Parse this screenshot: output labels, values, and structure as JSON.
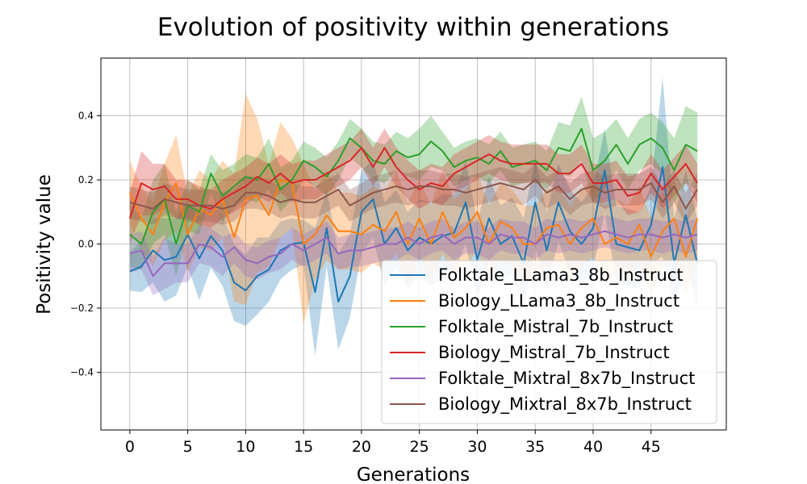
{
  "chart_data": {
    "type": "line",
    "title": "Evolution of positivity within generations",
    "xlabel": "Generations",
    "ylabel": "Positivity value",
    "xlim": [
      -2.5,
      51.5
    ],
    "ylim": [
      -0.58,
      0.58
    ],
    "xticks": [
      0,
      5,
      10,
      15,
      20,
      25,
      30,
      35,
      40,
      45
    ],
    "xtick_labels": [
      "0",
      "5",
      "10",
      "15",
      "20",
      "25",
      "30",
      "35",
      "40",
      "45"
    ],
    "yticks": [
      -0.4,
      -0.2,
      0.0,
      0.2,
      0.4
    ],
    "ytick_labels": [
      "−0.4",
      "−0.2",
      "0.0",
      "0.2",
      "0.4"
    ],
    "grid": true,
    "legend_position": "lower-right",
    "x": [
      0,
      1,
      2,
      3,
      4,
      5,
      6,
      7,
      8,
      9,
      10,
      11,
      12,
      13,
      14,
      15,
      16,
      17,
      18,
      19,
      20,
      21,
      22,
      23,
      24,
      25,
      26,
      27,
      28,
      29,
      30,
      31,
      32,
      33,
      34,
      35,
      36,
      37,
      38,
      39,
      40,
      41,
      42,
      43,
      44,
      45,
      46,
      47,
      48,
      49
    ],
    "series": [
      {
        "name": "Folktale_LLama3_8b_Instruct",
        "color": "#1f77b4",
        "values": [
          -0.085,
          -0.07,
          -0.02,
          -0.05,
          -0.04,
          0.03,
          -0.045,
          0.025,
          -0.02,
          -0.12,
          -0.145,
          -0.1,
          -0.08,
          -0.02,
          0.0,
          0.005,
          -0.15,
          0.05,
          -0.18,
          -0.1,
          0.1,
          0.14,
          0.0,
          0.05,
          -0.02,
          0.02,
          0.0,
          0.025,
          0.035,
          0.13,
          -0.05,
          0.08,
          0.0,
          0.025,
          -0.06,
          0.13,
          -0.02,
          0.13,
          0.04,
          0.0,
          0.05,
          0.23,
          0.0,
          -0.01,
          -0.02,
          0.06,
          0.24,
          -0.06,
          0.09,
          -0.06
        ],
        "band": [
          0.06,
          0.08,
          0.1,
          0.13,
          0.12,
          0.1,
          0.13,
          0.1,
          0.11,
          0.12,
          0.11,
          0.12,
          0.1,
          0.09,
          0.08,
          0.07,
          0.2,
          0.12,
          0.15,
          0.13,
          0.13,
          0.12,
          0.13,
          0.12,
          0.12,
          0.12,
          0.13,
          0.13,
          0.12,
          0.13,
          0.12,
          0.13,
          0.12,
          0.12,
          0.14,
          0.14,
          0.12,
          0.12,
          0.13,
          0.13,
          0.13,
          0.13,
          0.12,
          0.12,
          0.12,
          0.12,
          0.28,
          0.14,
          0.14,
          0.14
        ]
      },
      {
        "name": "Biology_LLama3_8b_Instruct",
        "color": "#ff7f0e",
        "values": [
          0.16,
          0.08,
          0.03,
          0.13,
          0.19,
          0.03,
          0.11,
          0.09,
          0.14,
          0.02,
          0.14,
          0.15,
          0.09,
          0.2,
          0.19,
          0.0,
          0.03,
          0.09,
          0.04,
          0.04,
          0.03,
          0.06,
          0.04,
          0.1,
          0.0,
          0.08,
          0.0,
          0.1,
          0.02,
          0.05,
          0.1,
          0.0,
          0.07,
          0.05,
          0.0,
          0.0,
          0.05,
          0.06,
          0.0,
          0.05,
          0.08,
          0.0,
          0.02,
          0.0,
          0.06,
          -0.04,
          0.04,
          0.08,
          -0.04,
          0.08
        ],
        "band": [
          0.1,
          0.1,
          0.1,
          0.12,
          0.15,
          0.12,
          0.12,
          0.11,
          0.12,
          0.2,
          0.33,
          0.24,
          0.16,
          0.18,
          0.14,
          0.25,
          0.14,
          0.14,
          0.12,
          0.12,
          0.12,
          0.12,
          0.12,
          0.13,
          0.13,
          0.12,
          0.12,
          0.13,
          0.12,
          0.12,
          0.12,
          0.12,
          0.12,
          0.12,
          0.12,
          0.12,
          0.12,
          0.12,
          0.12,
          0.12,
          0.12,
          0.12,
          0.12,
          0.12,
          0.12,
          0.12,
          0.12,
          0.12,
          0.12,
          0.12
        ]
      },
      {
        "name": "Folktale_Mistral_7b_Instruct",
        "color": "#2ca02c",
        "values": [
          0.03,
          0.0,
          0.1,
          0.14,
          0.0,
          0.12,
          0.1,
          0.22,
          0.15,
          0.18,
          0.21,
          0.2,
          0.25,
          0.17,
          0.2,
          0.26,
          0.24,
          0.21,
          0.26,
          0.33,
          0.3,
          0.26,
          0.25,
          0.29,
          0.27,
          0.28,
          0.32,
          0.29,
          0.24,
          0.26,
          0.27,
          0.25,
          0.29,
          0.24,
          0.25,
          0.26,
          0.23,
          0.3,
          0.29,
          0.36,
          0.23,
          0.26,
          0.31,
          0.25,
          0.31,
          0.33,
          0.3,
          0.23,
          0.31,
          0.29
        ],
        "band": [
          0.1,
          0.08,
          0.1,
          0.11,
          0.1,
          0.08,
          0.07,
          0.06,
          0.08,
          0.07,
          0.07,
          0.07,
          0.08,
          0.07,
          0.06,
          0.06,
          0.06,
          0.06,
          0.06,
          0.06,
          0.06,
          0.06,
          0.06,
          0.06,
          0.06,
          0.08,
          0.08,
          0.06,
          0.06,
          0.06,
          0.06,
          0.06,
          0.06,
          0.06,
          0.06,
          0.06,
          0.06,
          0.08,
          0.08,
          0.1,
          0.1,
          0.09,
          0.08,
          0.08,
          0.08,
          0.08,
          0.08,
          0.1,
          0.12,
          0.12
        ]
      },
      {
        "name": "Biology_Mistral_7b_Instruct",
        "color": "#d62728",
        "values": [
          0.08,
          0.19,
          0.17,
          0.18,
          0.14,
          0.14,
          0.12,
          0.11,
          0.14,
          0.16,
          0.18,
          0.21,
          0.19,
          0.22,
          0.19,
          0.2,
          0.2,
          0.22,
          0.24,
          0.26,
          0.3,
          0.24,
          0.3,
          0.24,
          0.2,
          0.17,
          0.19,
          0.18,
          0.22,
          0.24,
          0.26,
          0.28,
          0.26,
          0.25,
          0.25,
          0.25,
          0.25,
          0.22,
          0.22,
          0.25,
          0.19,
          0.19,
          0.2,
          0.15,
          0.16,
          0.22,
          0.17,
          0.21,
          0.25,
          0.19
        ],
        "band": [
          0.08,
          0.1,
          0.08,
          0.07,
          0.06,
          0.06,
          0.06,
          0.06,
          0.06,
          0.06,
          0.06,
          0.06,
          0.06,
          0.06,
          0.06,
          0.06,
          0.06,
          0.06,
          0.06,
          0.06,
          0.06,
          0.06,
          0.06,
          0.06,
          0.06,
          0.06,
          0.06,
          0.06,
          0.06,
          0.06,
          0.06,
          0.06,
          0.06,
          0.06,
          0.06,
          0.06,
          0.06,
          0.06,
          0.06,
          0.06,
          0.06,
          0.06,
          0.06,
          0.06,
          0.06,
          0.06,
          0.06,
          0.06,
          0.06,
          0.06
        ]
      },
      {
        "name": "Folktale_Mixtral_8x7b_Instruct",
        "color": "#9467bd",
        "values": [
          -0.03,
          -0.02,
          -0.1,
          -0.06,
          -0.06,
          -0.06,
          0.0,
          -0.01,
          -0.04,
          -0.01,
          -0.05,
          -0.06,
          -0.04,
          -0.03,
          0.0,
          -0.02,
          0.0,
          0.02,
          -0.03,
          -0.02,
          -0.02,
          -0.01,
          0.0,
          0.0,
          0.02,
          0.0,
          0.02,
          0.03,
          0.0,
          0.02,
          0.02,
          0.0,
          0.03,
          0.02,
          0.02,
          0.0,
          0.03,
          0.02,
          0.03,
          0.02,
          0.03,
          0.04,
          0.03,
          0.02,
          0.03,
          0.03,
          0.02,
          0.03,
          0.02,
          0.03
        ],
        "band": [
          0.06,
          0.06,
          0.06,
          0.08,
          0.06,
          0.06,
          0.06,
          0.06,
          0.06,
          0.05,
          0.05,
          0.05,
          0.05,
          0.05,
          0.05,
          0.05,
          0.05,
          0.05,
          0.05,
          0.05,
          0.05,
          0.05,
          0.05,
          0.05,
          0.05,
          0.05,
          0.05,
          0.05,
          0.05,
          0.05,
          0.05,
          0.05,
          0.05,
          0.05,
          0.05,
          0.05,
          0.05,
          0.05,
          0.05,
          0.05,
          0.05,
          0.05,
          0.05,
          0.05,
          0.05,
          0.05,
          0.05,
          0.05,
          0.05,
          0.05
        ]
      },
      {
        "name": "Biology_Mixtral_8x7b_Instruct",
        "color": "#8c564b",
        "values": [
          0.13,
          0.12,
          0.11,
          0.14,
          0.13,
          0.12,
          0.12,
          0.12,
          0.11,
          0.12,
          0.16,
          0.16,
          0.15,
          0.13,
          0.14,
          0.13,
          0.13,
          0.15,
          0.17,
          0.12,
          0.14,
          0.16,
          0.17,
          0.18,
          0.17,
          0.18,
          0.18,
          0.17,
          0.17,
          0.16,
          0.17,
          0.18,
          0.19,
          0.18,
          0.17,
          0.2,
          0.16,
          0.18,
          0.14,
          0.17,
          0.18,
          0.16,
          0.17,
          0.17,
          0.17,
          0.19,
          0.13,
          0.18,
          0.11,
          0.17
        ],
        "band": [
          0.05,
          0.05,
          0.05,
          0.05,
          0.05,
          0.05,
          0.05,
          0.05,
          0.05,
          0.05,
          0.05,
          0.05,
          0.05,
          0.05,
          0.05,
          0.05,
          0.05,
          0.05,
          0.05,
          0.05,
          0.05,
          0.05,
          0.05,
          0.05,
          0.05,
          0.05,
          0.05,
          0.05,
          0.05,
          0.05,
          0.05,
          0.05,
          0.05,
          0.05,
          0.05,
          0.05,
          0.05,
          0.05,
          0.05,
          0.05,
          0.05,
          0.05,
          0.05,
          0.05,
          0.05,
          0.05,
          0.05,
          0.05,
          0.05,
          0.05
        ]
      }
    ]
  }
}
